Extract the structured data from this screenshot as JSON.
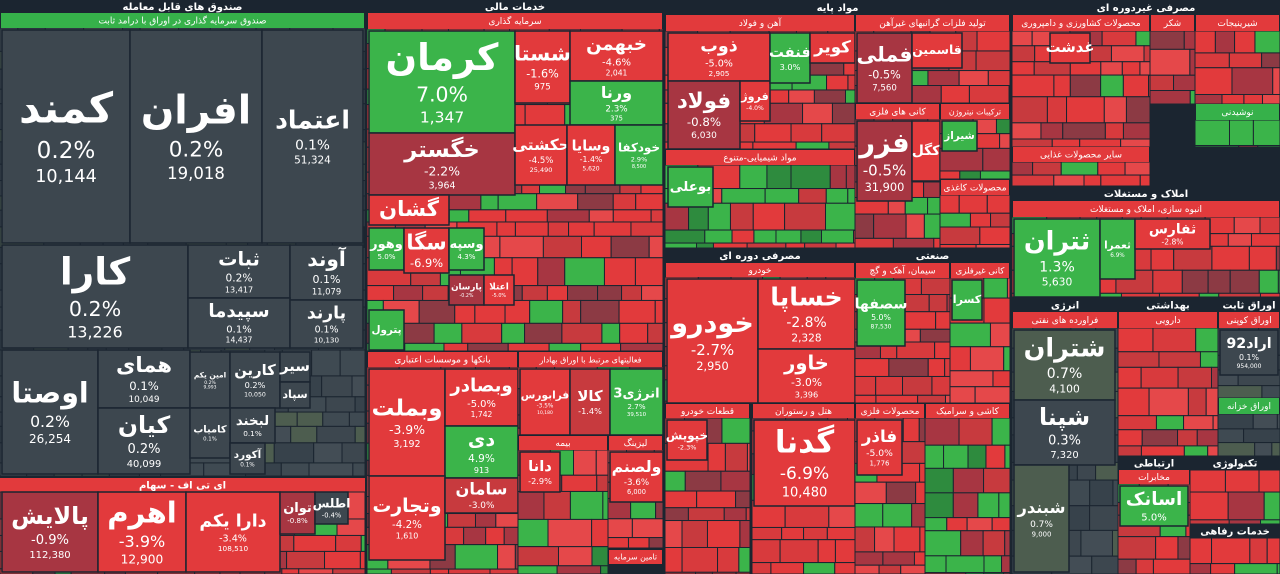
{
  "groups": [
    {
      "title": "صندوق های قابل معامله",
      "sections": [
        {
          "title": "صندوق سرمایه گذاری در اوراق با درامد ثابت",
          "tiles": [
            {
              "name": "کمند",
              "change": "0.2%",
              "volume": "10,144",
              "color": "#3d474f"
            },
            {
              "name": "افران",
              "change": "0.2%",
              "volume": "19,018",
              "color": "#3d474f"
            },
            {
              "name": "اعتماد",
              "change": "0.1%",
              "volume": "51,324",
              "color": "#3d474f"
            },
            {
              "name": "کارا",
              "change": "0.2%",
              "volume": "13,226",
              "color": "#3d474f"
            },
            {
              "name": "ثبات",
              "change": "0.2%",
              "volume": "13,417",
              "color": "#3d474f"
            },
            {
              "name": "آوند",
              "change": "0.1%",
              "volume": "11,079",
              "color": "#3d474f"
            },
            {
              "name": "سپیدما",
              "change": "0.1%",
              "volume": "14,437",
              "color": "#3d474f"
            },
            {
              "name": "پارند",
              "change": "0.1%",
              "volume": "10,130",
              "color": "#3d474f"
            },
            {
              "name": "اوصتا",
              "change": "0.2%",
              "volume": "26,254",
              "color": "#3d474f"
            },
            {
              "name": "همای",
              "change": "0.1%",
              "volume": "10,049",
              "color": "#3d474f"
            },
            {
              "name": "کیان",
              "change": "0.2%",
              "volume": "40,099",
              "color": "#3d474f"
            },
            {
              "name": "امین یکم",
              "change": "0.2%",
              "volume": "9,993",
              "color": "#3d474f"
            },
            {
              "name": "کارین",
              "change": "0.2%",
              "volume": "10,050",
              "color": "#3d474f"
            },
            {
              "name": "لبخند",
              "change": "0.1%",
              "color": "#3d474f"
            },
            {
              "name": "کامیاب",
              "change": "0.1%",
              "color": "#3d474f"
            },
            {
              "name": "سیر",
              "color": "#3d474f"
            },
            {
              "name": "سپاد",
              "color": "#3d474f"
            },
            {
              "name": "آکورد",
              "change": "0.1%",
              "color": "#3d474f"
            }
          ]
        }
      ]
    },
    {
      "title": "ای تی اف - سهام",
      "sections": [
        {
          "tiles": [
            {
              "name": "پالایش",
              "change": "-0.9%",
              "volume": "112,380",
              "color": "#a73642"
            },
            {
              "name": "اهرم",
              "change": "-3.9%",
              "volume": "12,900",
              "color": "#e23a3c"
            },
            {
              "name": "دارا یکم",
              "change": "-3.4%",
              "volume": "108,510",
              "color": "#e23a3c"
            },
            {
              "name": "توان",
              "change": "-0.8%",
              "color": "#a73642"
            },
            {
              "name": "اطلس",
              "change": "-0.4%",
              "color": "#3d474f"
            }
          ]
        }
      ]
    },
    {
      "title": "خدمات مالی",
      "sections": [
        {
          "title": "سرمایه گذاری",
          "tiles": [
            {
              "name": "کرمان",
              "change": "7.0%",
              "volume": "1,347",
              "color": "#3bb44a"
            },
            {
              "name": "شستا",
              "change": "-1.6%",
              "volume": "975",
              "color": "#e23a3c"
            },
            {
              "name": "خبهمن",
              "change": "-4.6%",
              "volume": "2,041",
              "color": "#e23a3c"
            },
            {
              "name": "ورنا",
              "change": "2.3%",
              "volume": "375",
              "color": "#3bb44a"
            },
            {
              "name": "خگستر",
              "change": "-2.2%",
              "volume": "3,964",
              "color": "#a73642"
            },
            {
              "name": "حکشتی",
              "change": "-4.5%",
              "volume": "25,490",
              "color": "#e23a3c"
            },
            {
              "name": "وسایا",
              "change": "-1.4%",
              "volume": "5,620",
              "color": "#e23a3c"
            },
            {
              "name": "خودکفا",
              "change": "2.9%",
              "volume": "8,500",
              "color": "#3bb44a"
            },
            {
              "name": "گشان",
              "color": "#e23a3c"
            },
            {
              "name": "وهور",
              "change": "5.0%",
              "color": "#3bb44a"
            },
            {
              "name": "سگا",
              "change": "-6.9%",
              "color": "#e23a3c"
            },
            {
              "name": "وسپه",
              "change": "4.3%",
              "color": "#3bb44a"
            },
            {
              "name": "پترول",
              "color": "#3bb44a"
            },
            {
              "name": "پارسان",
              "change": "-0.2%",
              "color": "#a73642"
            },
            {
              "name": "اعتلا",
              "change": "-5.0%",
              "color": "#e23a3c"
            }
          ]
        },
        {
          "title": "بانکها و موسسات اعتباری",
          "tiles": [
            {
              "name": "وبملت",
              "change": "-3.9%",
              "volume": "3,192",
              "color": "#e23a3c"
            },
            {
              "name": "وبصادر",
              "change": "-5.0%",
              "volume": "1,742",
              "color": "#e23a3c"
            },
            {
              "name": "دی",
              "change": "4.9%",
              "volume": "913",
              "color": "#3bb44a"
            },
            {
              "name": "وتجارت",
              "change": "-4.2%",
              "volume": "1,610",
              "color": "#e23a3c"
            },
            {
              "name": "سامان",
              "change": "-3.0%",
              "color": "#c73a3e"
            }
          ]
        },
        {
          "title": "فعالیتهای مرتبط با اوراق بهادار",
          "tiles": [
            {
              "name": "فرابورس",
              "change": "-3.5%",
              "volume": "10,180",
              "color": "#e23a3c"
            },
            {
              "name": "کالا",
              "change": "-1.4%",
              "color": "#c73a3e"
            },
            {
              "name": "انرژی3",
              "change": "2.7%",
              "volume": "39,510",
              "color": "#3bb44a"
            }
          ]
        },
        {
          "title": "بیمه",
          "tiles": [
            {
              "name": "دانا",
              "change": "-2.9%",
              "color": "#e23a3c"
            }
          ]
        },
        {
          "title": "لیزینگ",
          "tiles": [
            {
              "name": "ولصنم",
              "change": "-3.6%",
              "volume": "6,000",
              "color": "#e23a3c"
            }
          ]
        },
        {
          "title": "تامین سرمایه",
          "tiles": []
        }
      ]
    },
    {
      "title": "مواد پایه",
      "sections": [
        {
          "title": "آهن و فولاد",
          "tiles": [
            {
              "name": "ذوب",
              "change": "-5.0%",
              "volume": "2,905",
              "color": "#e23a3c"
            },
            {
              "name": "فولاد",
              "change": "-0.8%",
              "volume": "6,030",
              "color": "#a73642"
            },
            {
              "name": "فروژ",
              "change": "-4.0%",
              "color": "#e23a3c"
            },
            {
              "name": "فنفت",
              "change": "3.0%",
              "color": "#3bb44a"
            },
            {
              "name": "کویر",
              "color": "#e23a3c"
            }
          ]
        },
        {
          "title": "تولید فلزات گرانبهای غیرآهن",
          "tiles": [
            {
              "name": "فملی",
              "change": "-0.5%",
              "volume": "7,560",
              "color": "#a73642"
            },
            {
              "name": "قاسمین",
              "color": "#e23a3c"
            }
          ]
        },
        {
          "title": "مواد شیمیایی-متنوع",
          "tiles": [
            {
              "name": "بوعلی",
              "color": "#3bb44a"
            }
          ]
        },
        {
          "title": "کانی های فلزی",
          "tiles": [
            {
              "name": "فزر",
              "change": "-0.5%",
              "volume": "31,900",
              "color": "#a73642"
            },
            {
              "name": "کگل",
              "color": "#e23a3c"
            }
          ]
        },
        {
          "title": "ترکیبات نیتروژن",
          "tiles": [
            {
              "name": "شیراز",
              "color": "#3bb44a"
            }
          ]
        },
        {
          "title": "محصولات کاغذی",
          "tiles": []
        }
      ]
    },
    {
      "title": "مصرفی دوره ای",
      "sections": [
        {
          "title": "خودرو",
          "tiles": [
            {
              "name": "خودرو",
              "change": "-2.7%",
              "volume": "2,950",
              "color": "#e23a3c"
            },
            {
              "name": "خساپا",
              "change": "-2.8%",
              "volume": "2,328",
              "color": "#e23a3c"
            },
            {
              "name": "خاور",
              "change": "-3.0%",
              "volume": "3,396",
              "color": "#e23a3c"
            }
          ]
        },
        {
          "title": "قطعات خودرو",
          "tiles": [
            {
              "name": "خپویش",
              "change": "-2.3%",
              "color": "#e23a3c"
            }
          ]
        },
        {
          "title": "هتل و رستوران",
          "tiles": [
            {
              "name": "گدنا",
              "change": "-6.9%",
              "volume": "10,480",
              "color": "#e23a3c"
            }
          ]
        }
      ]
    },
    {
      "title": "صنعتی",
      "sections": [
        {
          "title": "سیمان، آهک و گچ",
          "tiles": [
            {
              "name": "سصفها",
              "change": "5.0%",
              "volume": "87,530",
              "color": "#3bb44a"
            }
          ]
        },
        {
          "title": "کانی غیرفلزی",
          "tiles": [
            {
              "name": "کسرا",
              "color": "#3bb44a"
            }
          ]
        },
        {
          "title": "محصولات فلزی",
          "tiles": [
            {
              "name": "فاذر",
              "change": "-5.0%",
              "volume": "1,776",
              "color": "#e23a3c"
            }
          ]
        },
        {
          "title": "کاشی و سرامیک",
          "tiles": []
        }
      ]
    },
    {
      "title": "مصرفی غیردوره ای",
      "sections": [
        {
          "title": "محصولات کشاورزی و دامپروری",
          "tiles": [
            {
              "name": "غدشت",
              "color": "#e23a3c"
            }
          ]
        },
        {
          "title": "شکر",
          "tiles": []
        },
        {
          "title": "شیرینیجات",
          "tiles": []
        },
        {
          "title": "نوشیدنی",
          "tiles": []
        },
        {
          "title": "سایر محصولات غذایی",
          "tiles": []
        }
      ]
    },
    {
      "title": "املاک و مستغلات",
      "sections": [
        {
          "title": "انبوه سازی، املاک و مستغلات",
          "tiles": [
            {
              "name": "ثتران",
              "change": "1.3%",
              "volume": "5,630",
              "color": "#3bb44a"
            },
            {
              "name": "ثعمرا",
              "change": "6.9%",
              "color": "#3bb44a"
            },
            {
              "name": "ثفارس",
              "change": "-2.8%",
              "color": "#e23a3c"
            }
          ]
        }
      ]
    },
    {
      "title": "انرژی",
      "sections": [
        {
          "title": "فراورده های نفتی",
          "tiles": [
            {
              "name": "شتران",
              "change": "0.7%",
              "volume": "4,100",
              "color": "#4d5d4f"
            },
            {
              "name": "شپنا",
              "change": "0.3%",
              "volume": "7,320",
              "color": "#3d474f"
            },
            {
              "name": "شبندر",
              "change": "0.7%",
              "volume": "9,000",
              "color": "#4d5d4f"
            }
          ]
        }
      ]
    },
    {
      "title": "بهداشتی",
      "sections": [
        {
          "title": "دارویی",
          "tiles": []
        }
      ]
    },
    {
      "title": "اوراق ثابت",
      "sections": [
        {
          "title": "اوراق کوپنی",
          "tiles": [
            {
              "name": "اراد92",
              "change": "0.1%",
              "volume": "954,000",
              "color": "#3d474f"
            }
          ]
        },
        {
          "title": "اوراق خزانه",
          "tiles": []
        }
      ]
    },
    {
      "title": "ارتباطی",
      "sections": [
        {
          "title": "مخابرات",
          "tiles": [
            {
              "name": "اسانک",
              "change": "5.0%",
              "color": "#3bb44a"
            }
          ]
        }
      ]
    },
    {
      "title": "تکنولوژی",
      "sections": [
        {
          "tiles": []
        }
      ]
    },
    {
      "title": "خدمات رفاهی",
      "sections": [
        {
          "tiles": []
        }
      ]
    }
  ]
}
